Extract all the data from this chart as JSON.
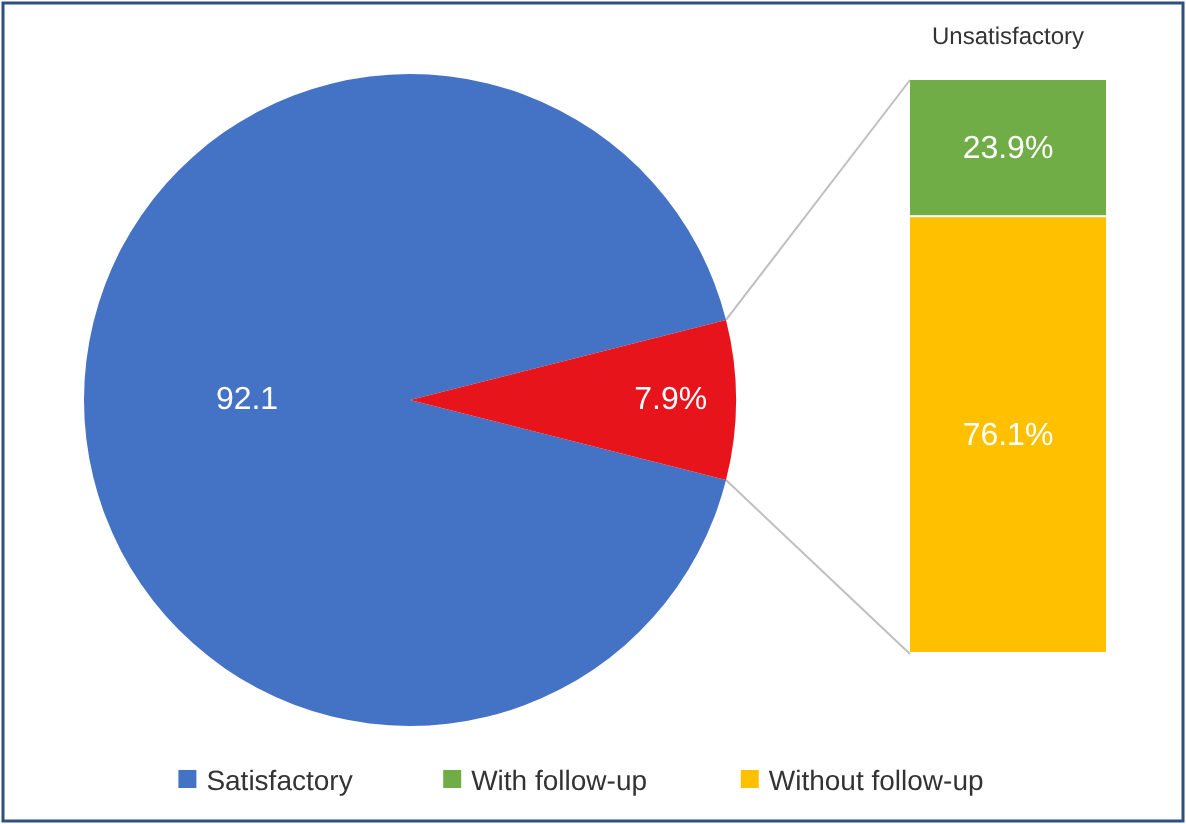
{
  "chart_data": [
    {
      "type": "pie",
      "categories": [
        "Satisfactory",
        null
      ],
      "values": [
        92.1,
        7.9
      ],
      "colors": [
        "#4472c4",
        "#e8141b"
      ],
      "value_labels": [
        "92.1",
        "7.9%"
      ],
      "legend": "bottom"
    },
    {
      "type": "bar",
      "title": "Unsatisfactory",
      "categories": [
        null
      ],
      "stacked": true,
      "legend": "bottom",
      "series": [
        {
          "name": "Without follow-up",
          "color": "#ffc000",
          "values": [
            76.1
          ],
          "value_labels": [
            "76.1%"
          ]
        },
        {
          "name": "With follow-up",
          "color": "#70ad47",
          "values": [
            23.9
          ],
          "value_labels": [
            "23.9%"
          ]
        }
      ]
    }
  ]
}
